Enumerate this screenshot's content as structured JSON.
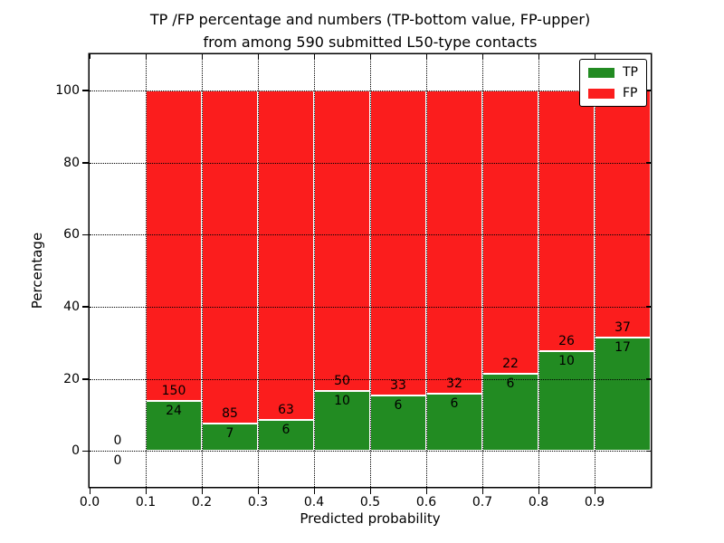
{
  "chart_data": {
    "type": "bar",
    "stacked": true,
    "title_line1": "TP /FP percentage and numbers (TP-bottom value, FP-upper)",
    "title_line2": "from among 590 submitted L50-type contacts",
    "xlabel": "Predicted probability",
    "ylabel": "Percentage",
    "xlim": [
      0.0,
      1.0
    ],
    "ylim": [
      -10,
      110
    ],
    "ytick_values": [
      0,
      20,
      40,
      60,
      80,
      100
    ],
    "ytick_labels": [
      "0",
      "20",
      "40",
      "60",
      "80",
      "100"
    ],
    "xtick_labels": [
      "0.0",
      "0.1",
      "0.2",
      "0.3",
      "0.4",
      "0.5",
      "0.6",
      "0.7",
      "0.8",
      "0.9"
    ],
    "grid": "dotted black, horizontal and vertical, drawn over bars",
    "total_contacts": 590,
    "legend": {
      "position": "upper right",
      "items": [
        {
          "label": "TP",
          "color": "#228b22"
        },
        {
          "label": "FP",
          "color": "#fb1d1d"
        }
      ]
    },
    "bins": [
      {
        "x_start": 0.0,
        "x_end": 0.1,
        "tp_count": 0,
        "fp_count": 0,
        "tp_percent": 0.0,
        "fp_percent": 0.0
      },
      {
        "x_start": 0.1,
        "x_end": 0.2,
        "tp_count": 24,
        "fp_count": 150,
        "tp_percent": 13.79,
        "fp_percent": 86.21
      },
      {
        "x_start": 0.2,
        "x_end": 0.3,
        "tp_count": 7,
        "fp_count": 85,
        "tp_percent": 7.61,
        "fp_percent": 92.39
      },
      {
        "x_start": 0.3,
        "x_end": 0.4,
        "tp_count": 6,
        "fp_count": 63,
        "tp_percent": 8.7,
        "fp_percent": 91.3
      },
      {
        "x_start": 0.4,
        "x_end": 0.5,
        "tp_count": 10,
        "fp_count": 50,
        "tp_percent": 16.67,
        "fp_percent": 83.33
      },
      {
        "x_start": 0.5,
        "x_end": 0.6,
        "tp_count": 6,
        "fp_count": 33,
        "tp_percent": 15.38,
        "fp_percent": 84.62
      },
      {
        "x_start": 0.6,
        "x_end": 0.7,
        "tp_count": 6,
        "fp_count": 32,
        "tp_percent": 15.79,
        "fp_percent": 84.21
      },
      {
        "x_start": 0.7,
        "x_end": 0.8,
        "tp_count": 6,
        "fp_count": 22,
        "tp_percent": 21.43,
        "fp_percent": 78.57
      },
      {
        "x_start": 0.8,
        "x_end": 0.9,
        "tp_count": 10,
        "fp_count": 26,
        "tp_percent": 27.78,
        "fp_percent": 72.22
      },
      {
        "x_start": 0.9,
        "x_end": 1.0,
        "tp_count": 17,
        "fp_count": 37,
        "tp_percent": 31.48,
        "fp_percent": 68.52
      }
    ],
    "colors": {
      "tp": "#228b22",
      "fp": "#fb1d1d",
      "bar_edge": "#ffffff",
      "grid": "#000000",
      "text": "#000000",
      "background": "#ffffff"
    }
  }
}
